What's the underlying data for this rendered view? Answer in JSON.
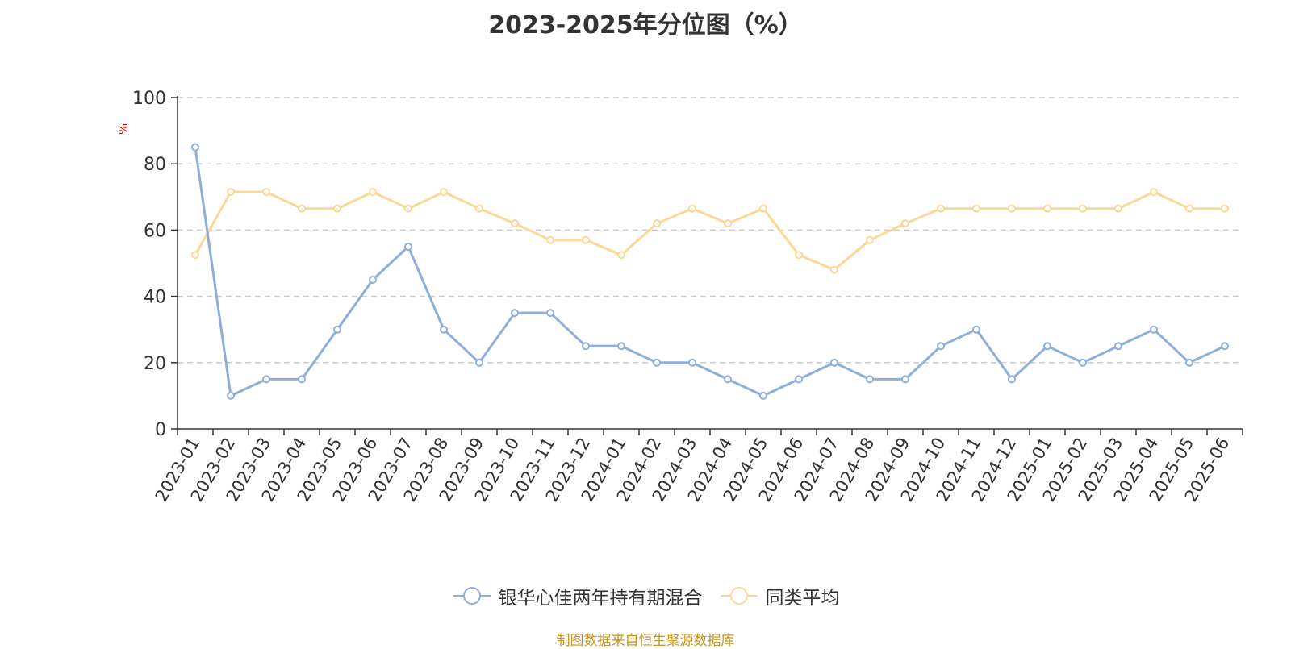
{
  "title": "2023-2025年分位图（%）",
  "unit": "%",
  "footer": "制图数据来自恒生聚源数据库",
  "colors": {
    "series1": "#8eaedb",
    "series2": "#fbd896",
    "grid": "#cccccc",
    "axis": "#333333",
    "footer": "#c8941e"
  },
  "chart_data": {
    "type": "line",
    "title": "2023-2025年分位图（%）",
    "ylabel": "%",
    "ylim": [
      0,
      100
    ],
    "yticks": [
      0,
      20,
      40,
      60,
      80,
      100
    ],
    "grid": "horizontal dashed",
    "legend_position": "bottom",
    "categories": [
      "2023-01",
      "2023-02",
      "2023-03",
      "2023-04",
      "2023-05",
      "2023-06",
      "2023-07",
      "2023-08",
      "2023-09",
      "2023-10",
      "2023-11",
      "2023-12",
      "2024-01",
      "2024-02",
      "2024-03",
      "2024-04",
      "2024-05",
      "2024-06",
      "2024-07",
      "2024-08",
      "2024-09",
      "2024-10",
      "2024-11",
      "2024-12",
      "2025-01",
      "2025-02",
      "2025-03",
      "2025-04",
      "2025-05",
      "2025-06"
    ],
    "series": [
      {
        "name": "银华心佳两年持有期混合",
        "color": "#8eaedb",
        "values": [
          85,
          10,
          15,
          15,
          30,
          45,
          55,
          30,
          20,
          35,
          35,
          25,
          25,
          20,
          20,
          15,
          10,
          15,
          20,
          15,
          15,
          25,
          30,
          15,
          25,
          20,
          25,
          30,
          20,
          25
        ]
      },
      {
        "name": "同类平均",
        "color": "#fbd896",
        "values": [
          52.5,
          71.5,
          71.5,
          66.5,
          66.5,
          71.5,
          66.5,
          71.5,
          66.5,
          62,
          57,
          57,
          52.5,
          62,
          66.5,
          62,
          66.5,
          52.5,
          48,
          57,
          62,
          66.5,
          66.5,
          66.5,
          66.5,
          66.5,
          66.5,
          71.5,
          66.5,
          66.5
        ]
      }
    ]
  }
}
